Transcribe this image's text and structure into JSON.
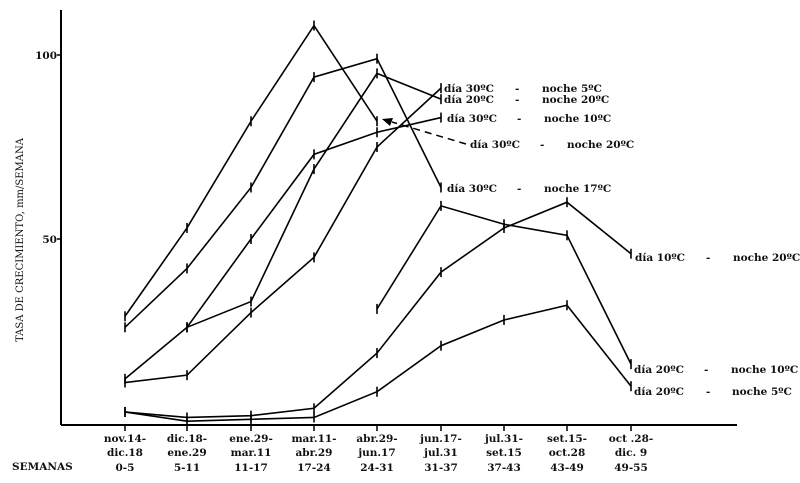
{
  "chart_data": {
    "type": "line",
    "title": "",
    "ylabel": "TASA DE CRECIMIENTO, mm/SEMANA",
    "xlabel_rows_prefix": "SEMANAS",
    "ylim": [
      0,
      112
    ],
    "yticks": [
      50,
      100
    ],
    "grid": false,
    "error_bars": true,
    "categories": [
      {
        "date1": "nov.14-",
        "date2": "dic.18",
        "weeks": "0-5"
      },
      {
        "date1": "dic.18-",
        "date2": "ene.29",
        "weeks": "5-11"
      },
      {
        "date1": "ene.29-",
        "date2": "mar.11",
        "weeks": "11-17"
      },
      {
        "date1": "mar.11-",
        "date2": "abr.29",
        "weeks": "17-24"
      },
      {
        "date1": "abr.29-",
        "date2": "jun.17",
        "weeks": "24-31"
      },
      {
        "date1": "jun.17-",
        "date2": "jul.31",
        "weeks": "31-37"
      },
      {
        "date1": "jul.31-",
        "date2": "set.15",
        "weeks": "37-43"
      },
      {
        "date1": "set.15-",
        "date2": "oct.28",
        "weeks": "43-49"
      },
      {
        "date1": "oct .28-",
        "date2": "dic.  9",
        "weeks": "49-55"
      }
    ],
    "series": [
      {
        "day": "día 30ºC",
        "sep": "-",
        "night": "noche 20ºC",
        "dashed_label": true,
        "values": [
          29,
          53,
          82,
          108,
          82,
          null,
          null,
          null,
          null
        ]
      },
      {
        "day": "día 30ºC",
        "sep": "-",
        "night": "noche 17ºC",
        "values": [
          26,
          42,
          64,
          94,
          99,
          64,
          null,
          null,
          null
        ]
      },
      {
        "day": "día 30ºC",
        "sep": "-",
        "night": "noche 10ºC",
        "values": [
          12,
          26,
          50,
          73,
          79,
          83,
          null,
          null,
          null
        ]
      },
      {
        "day": "día 30ºC",
        "sep": "-",
        "night": "noche 5ºC",
        "values": [
          11,
          13,
          30,
          45,
          75,
          91,
          null,
          null,
          null
        ]
      },
      {
        "day": "día 20ºC",
        "sep": "-",
        "night": "noche 20ºC",
        "values": [
          null,
          26,
          33,
          69,
          95,
          88,
          null,
          null,
          null
        ]
      },
      {
        "day": "día 20ºC",
        "sep": "-",
        "night": "noche 10ºC",
        "values": [
          null,
          null,
          null,
          null,
          31,
          59,
          54,
          51,
          16
        ]
      },
      {
        "day": "día 10ºC",
        "sep": "-",
        "night": "noche 20ºC",
        "values": [
          3,
          1.5,
          2,
          4,
          19,
          41,
          53,
          60,
          46
        ]
      },
      {
        "day": "día 20ºC",
        "sep": "-",
        "night": "noche 5ºC",
        "values": [
          3,
          0.5,
          1,
          1.5,
          8.5,
          21,
          28,
          32,
          10
        ]
      }
    ]
  }
}
